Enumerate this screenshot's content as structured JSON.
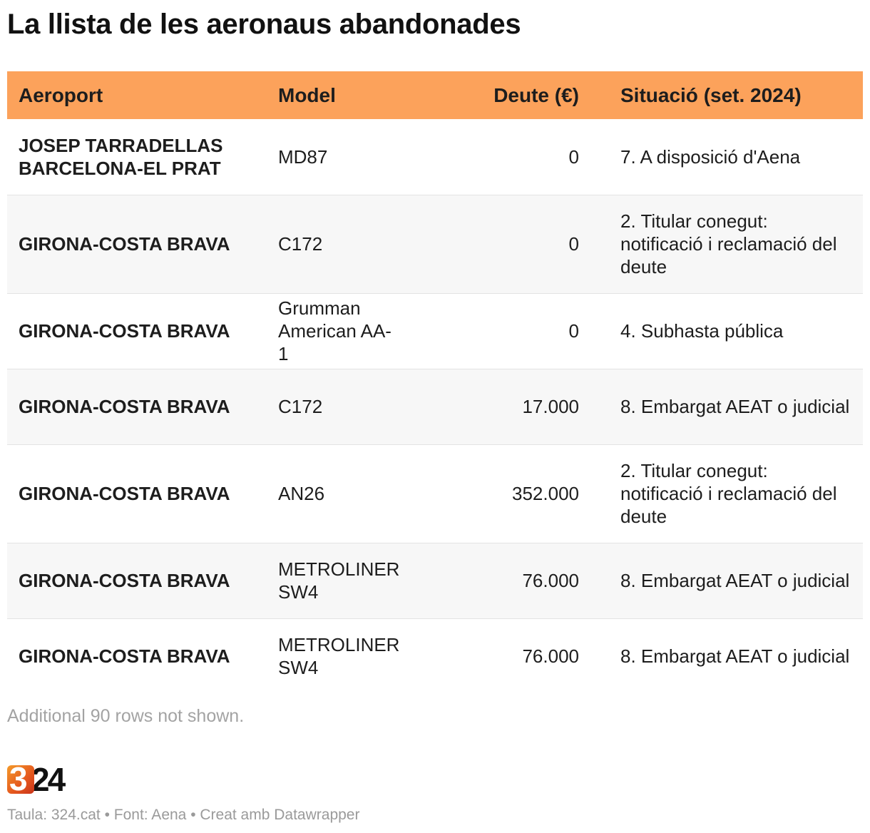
{
  "title": "La llista de les aeronaus abandonades",
  "chart_data": {
    "type": "table",
    "title": "La llista de les aeronaus abandonades",
    "columns": [
      "Aeroport",
      "Model",
      "Deute (€)",
      "Situació (set. 2024)"
    ],
    "rows": [
      {
        "airport": "JOSEP TARRADELLAS BARCELONA-EL PRAT",
        "model": "MD87",
        "debt": "0",
        "status": "7. A disposició d'Aena"
      },
      {
        "airport": "GIRONA-COSTA BRAVA",
        "model": "C172",
        "debt": "0",
        "status": "2. Titular conegut: notificació i reclamació del deute"
      },
      {
        "airport": "GIRONA-COSTA BRAVA",
        "model": "Grumman American AA-1",
        "debt": "0",
        "status": "4. Subhasta pública"
      },
      {
        "airport": "GIRONA-COSTA BRAVA",
        "model": "C172",
        "debt": "17.000",
        "status": "8. Embargat AEAT o judicial"
      },
      {
        "airport": "GIRONA-COSTA BRAVA",
        "model": "AN26",
        "debt": "352.000",
        "status": "2. Titular conegut: notificació i reclamació del deute"
      },
      {
        "airport": "GIRONA-COSTA BRAVA",
        "model": "METROLINER SW4",
        "debt": "76.000",
        "status": "8. Embargat AEAT o judicial"
      },
      {
        "airport": "GIRONA-COSTA BRAVA",
        "model": "METROLINER SW4",
        "debt": "76.000",
        "status": "8. Embargat AEAT o judicial"
      }
    ]
  },
  "note": "Additional 90 rows not shown.",
  "logo": {
    "mark": "3",
    "text": "24"
  },
  "footer": "Taula: 324.cat • Font: Aena • Creat amb Datawrapper",
  "colors": {
    "header_bg": "#fca25b",
    "stripe_bg": "#f7f7f7",
    "logo_orange": "#e4561e"
  }
}
